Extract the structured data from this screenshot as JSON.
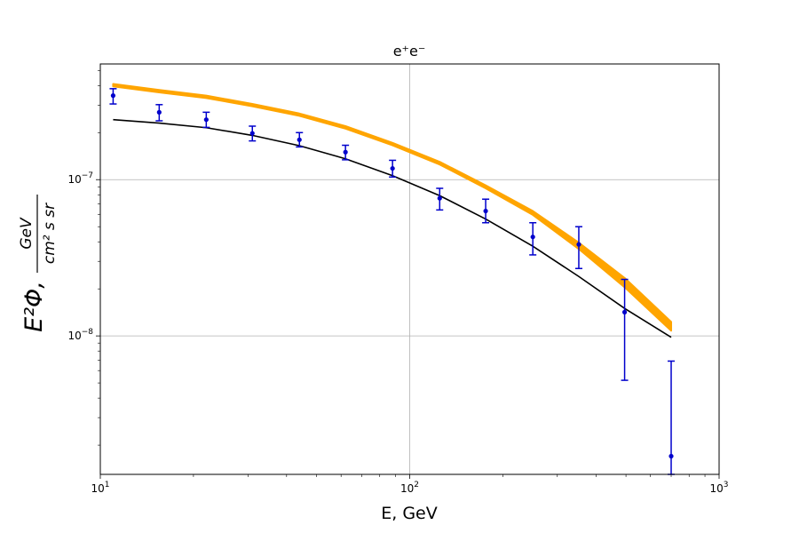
{
  "chart_data": {
    "type": "scatter",
    "title": "e⁺e⁻",
    "xlabel": "E, GeV",
    "ylabel": {
      "main": "E²Φ,",
      "numerator": "GeV",
      "denominator": "cm² s sr"
    },
    "xscale": "log",
    "yscale": "log",
    "xlim": [
      10,
      1000
    ],
    "ylim": [
      1.3e-09,
      5.5e-07
    ],
    "grid": true,
    "x_ticks": [
      {
        "value": 10,
        "base": "10",
        "exp": "1"
      },
      {
        "value": 100,
        "base": "10",
        "exp": "2"
      },
      {
        "value": 1000,
        "base": "10",
        "exp": "3"
      }
    ],
    "y_ticks": [
      {
        "value": 1e-08,
        "base": "10",
        "exp": "−8"
      },
      {
        "value": 1e-07,
        "base": "10",
        "exp": "−7"
      }
    ],
    "series": [
      {
        "kind": "band",
        "color": "#ffa500",
        "x": [
          11,
          15.5,
          22,
          31,
          44,
          62,
          88,
          125,
          176,
          250,
          352,
          495,
          700
        ],
        "upper": [
          4.1e-07,
          3.75e-07,
          3.45e-07,
          3.05e-07,
          2.65e-07,
          2.2e-07,
          1.72e-07,
          1.3e-07,
          9.2e-08,
          6.3e-08,
          3.95e-08,
          2.35e-08,
          1.23e-08
        ],
        "lower": [
          3.95e-07,
          3.62e-07,
          3.33e-07,
          2.95e-07,
          2.56e-07,
          2.12e-07,
          1.66e-07,
          1.25e-07,
          8.8e-08,
          5.95e-08,
          3.6e-08,
          2.05e-08,
          1.08e-08
        ]
      },
      {
        "kind": "line",
        "color": "#000000",
        "x": [
          11,
          15.5,
          22,
          31,
          44,
          62,
          88,
          125,
          176,
          250,
          352,
          495,
          700
        ],
        "y": [
          2.42e-07,
          2.3e-07,
          2.15e-07,
          1.92e-07,
          1.65e-07,
          1.36e-07,
          1.06e-07,
          7.9e-08,
          5.6e-08,
          3.75e-08,
          2.4e-08,
          1.5e-08,
          9.8e-09
        ]
      },
      {
        "kind": "errorbar",
        "color": "#0000cc",
        "points": [
          {
            "x": 11,
            "y": 3.45e-07,
            "lo": 3.05e-07,
            "hi": 3.82e-07
          },
          {
            "x": 15.5,
            "y": 2.7e-07,
            "lo": 2.38e-07,
            "hi": 3.02e-07
          },
          {
            "x": 22,
            "y": 2.42e-07,
            "lo": 2.16e-07,
            "hi": 2.7e-07
          },
          {
            "x": 31,
            "y": 1.98e-07,
            "lo": 1.77e-07,
            "hi": 2.2e-07
          },
          {
            "x": 44,
            "y": 1.8e-07,
            "lo": 1.62e-07,
            "hi": 2e-07
          },
          {
            "x": 62,
            "y": 1.5e-07,
            "lo": 1.34e-07,
            "hi": 1.66e-07
          },
          {
            "x": 88,
            "y": 1.18e-07,
            "lo": 1.04e-07,
            "hi": 1.33e-07
          },
          {
            "x": 125,
            "y": 7.6e-08,
            "lo": 6.4e-08,
            "hi": 8.8e-08
          },
          {
            "x": 176,
            "y": 6.3e-08,
            "lo": 5.3e-08,
            "hi": 7.5e-08
          },
          {
            "x": 250,
            "y": 4.3e-08,
            "lo": 3.3e-08,
            "hi": 5.3e-08
          },
          {
            "x": 352,
            "y": 3.85e-08,
            "lo": 2.7e-08,
            "hi": 5e-08
          },
          {
            "x": 495,
            "y": 1.42e-08,
            "lo": 5.2e-09,
            "hi": 2.3e-08
          },
          {
            "x": 700,
            "y": 1.7e-09,
            "lo": 1.3e-09,
            "hi": 6.9e-09
          }
        ]
      }
    ]
  }
}
